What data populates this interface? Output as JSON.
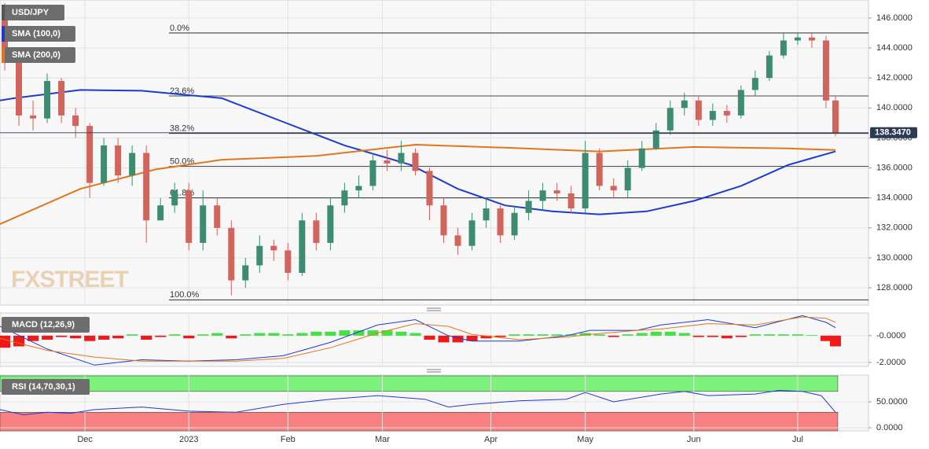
{
  "chart_data": [
    {
      "type": "candlestick",
      "title": "USD/JPY",
      "watermark": "FXSTREET",
      "x": [
        1,
        4,
        7,
        10,
        13,
        16,
        19,
        22,
        25,
        28,
        31,
        34,
        37,
        40,
        43,
        46,
        49,
        52,
        55,
        58,
        61,
        64,
        67,
        70,
        73,
        76,
        79,
        82,
        85,
        88,
        91,
        94,
        97,
        100,
        103,
        106,
        109,
        112,
        115,
        118,
        121,
        124,
        127,
        130,
        133,
        136,
        139,
        142,
        145,
        148,
        151,
        154,
        157,
        160,
        163,
        166,
        169,
        172,
        175,
        177
      ],
      "open": [
        146,
        143,
        139.5,
        139.3,
        141.8,
        139.5,
        138.8,
        135,
        137.5,
        135.5,
        137,
        132.5,
        133.5,
        134.5,
        131,
        133.5,
        132,
        128.5,
        129.5,
        130.8,
        130.5,
        129,
        132.5,
        131,
        133.5,
        134.5,
        134.8,
        136.5,
        136.3,
        137,
        135.8,
        133.5,
        131.5,
        130.8,
        132.5,
        133.3,
        131.5,
        133,
        133.8,
        134.5,
        134.3,
        133.3,
        137,
        134.8,
        134.5,
        136,
        137.3,
        138.5,
        140,
        140.5,
        139.2,
        139.8,
        139.5,
        141.2,
        142,
        143.5,
        144.5,
        144.7,
        144.5,
        140.5
      ],
      "high": [
        147,
        143.5,
        140.5,
        142.3,
        142,
        140,
        139,
        138,
        138,
        137.5,
        137.5,
        134,
        135,
        135,
        134.5,
        134,
        132.5,
        130,
        131.5,
        131.2,
        131,
        133,
        133,
        134,
        135,
        135.5,
        137,
        137.2,
        137.8,
        137.3,
        136,
        134,
        132,
        133,
        134,
        133.5,
        133.5,
        134.5,
        135,
        135,
        134.8,
        137.8,
        137.3,
        135.3,
        136.5,
        137.8,
        139,
        140.5,
        141,
        140.8,
        140.3,
        140.2,
        141.5,
        142.5,
        143.8,
        145,
        145,
        145,
        144.8,
        140.8
      ],
      "low": [
        142.5,
        138.8,
        138.5,
        139,
        139,
        138,
        134,
        134.8,
        135,
        134.8,
        131,
        132.5,
        133,
        130.5,
        130.5,
        131.5,
        127.5,
        128,
        129,
        129.8,
        128.5,
        128.8,
        130.5,
        130.5,
        133,
        134,
        134.5,
        135.8,
        135.8,
        135.5,
        132.5,
        131,
        130.2,
        130.5,
        132,
        131,
        131.2,
        132.5,
        133.2,
        133.8,
        133,
        133,
        134.5,
        134,
        134,
        135.8,
        137.2,
        138.2,
        139.5,
        138.8,
        138.8,
        139,
        139.3,
        140.8,
        141.8,
        143.3,
        144.2,
        144,
        140,
        138.1
      ],
      "close": [
        143,
        139.5,
        139.3,
        141.8,
        139.5,
        138.8,
        135,
        137.5,
        135.5,
        137,
        132.5,
        133.5,
        134.5,
        131,
        133.5,
        132,
        128.5,
        129.5,
        130.8,
        130.5,
        129,
        132.5,
        131,
        133.5,
        134.5,
        134.8,
        136.5,
        136.3,
        137,
        135.8,
        133.5,
        131.5,
        130.8,
        132.5,
        133.3,
        131.5,
        133,
        133.8,
        134.5,
        134.3,
        133.3,
        137,
        134.8,
        134.5,
        136,
        137.3,
        138.5,
        140,
        140.5,
        139.2,
        139.8,
        139.5,
        141.2,
        142,
        143.5,
        144.5,
        144.7,
        144.5,
        140.5,
        138.35
      ],
      "up_color": "#3d8c72",
      "down_color": "#d1645c",
      "title_color": "#555555",
      "series": [
        {
          "name": "SMA (100,0)",
          "color": "#1e3ad1",
          "x": [
            0,
            3,
            17,
            30,
            47,
            60,
            73,
            87,
            97,
            107,
            117,
            127,
            137,
            147,
            157,
            167,
            177
          ],
          "values": [
            140.5,
            140.65,
            141.2,
            141.15,
            140.65,
            139.07,
            137.5,
            136.2,
            134.6,
            133.5,
            133.1,
            132.9,
            133.1,
            133.8,
            134.8,
            136.2,
            137.1
          ]
        },
        {
          "name": "SMA (200,0)",
          "color": "#e0761c",
          "x": [
            0,
            17,
            33,
            47,
            67,
            88,
            107,
            127,
            147,
            167,
            177
          ],
          "values": [
            132.25,
            134.6,
            135.9,
            136.55,
            136.8,
            137.55,
            137.35,
            137.1,
            137.4,
            137.3,
            137.2
          ]
        }
      ],
      "fib_levels": [
        {
          "label": "0.0%",
          "value": 145.0
        },
        {
          "label": "23.6%",
          "value": 140.8
        },
        {
          "label": "38.2%",
          "value": 138.3
        },
        {
          "label": "50.0%",
          "value": 136.1
        },
        {
          "label": "61.8%",
          "value": 134.0
        },
        {
          "label": "100.0%",
          "value": 127.2
        }
      ],
      "last_price": {
        "value": 138.347,
        "label": "138.3470"
      },
      "xlim": [
        0,
        184
      ],
      "xticks": [
        {
          "value": 18,
          "label": "Dec"
        },
        {
          "value": 40,
          "label": "2023"
        },
        {
          "value": 61,
          "label": "Feb"
        },
        {
          "value": 81,
          "label": "Mar"
        },
        {
          "value": 104,
          "label": "Apr"
        },
        {
          "value": 124,
          "label": "May"
        },
        {
          "value": 147,
          "label": "Jun"
        },
        {
          "value": 169,
          "label": "Jul"
        }
      ],
      "ylim": [
        126.85,
        147.2
      ],
      "yticks": [
        {
          "value": 128,
          "label": "128.0000"
        },
        {
          "value": 130,
          "label": "130.0000"
        },
        {
          "value": 132,
          "label": "132.0000"
        },
        {
          "value": 134,
          "label": "134.0000"
        },
        {
          "value": 136,
          "label": "136.0000"
        },
        {
          "value": 138,
          "label": "138.0000"
        },
        {
          "value": 140,
          "label": "140.0000"
        },
        {
          "value": 142,
          "label": "142.0000"
        },
        {
          "value": 144,
          "label": "144.0000"
        },
        {
          "value": 146,
          "label": "146.0000"
        }
      ],
      "grid": true
    },
    {
      "type": "macd",
      "title": "MACD (12,26,9)",
      "x": [
        0,
        10,
        20,
        30,
        40,
        50,
        60,
        70,
        80,
        88,
        95,
        100,
        110,
        120,
        125,
        135,
        140,
        150,
        160,
        170,
        175,
        177
      ],
      "series": [
        {
          "color": "#1e3ad1",
          "values": [
            0.7,
            -1.0,
            -2.2,
            -1.8,
            -1.9,
            -1.8,
            -1.5,
            -0.5,
            0.8,
            1.2,
            0.0,
            -0.4,
            -0.4,
            0.0,
            0.4,
            0.4,
            0.8,
            1.2,
            0.6,
            1.5,
            1.0,
            0.6
          ]
        },
        {
          "color": "#e0761c",
          "values": [
            -0.2,
            -1.1,
            -1.6,
            -1.9,
            -1.9,
            -1.9,
            -1.7,
            -0.9,
            0.2,
            0.9,
            0.7,
            0.1,
            -0.3,
            -0.1,
            0.1,
            0.4,
            0.5,
            0.9,
            0.8,
            1.4,
            1.3,
            1.0
          ]
        }
      ],
      "histogram": {
        "up_color": "#44e044",
        "down_color": "#f01818",
        "x": [
          1,
          4,
          7,
          10,
          13,
          16,
          19,
          22,
          25,
          28,
          31,
          34,
          37,
          40,
          43,
          46,
          49,
          52,
          55,
          58,
          61,
          64,
          67,
          70,
          73,
          76,
          79,
          82,
          85,
          88,
          91,
          94,
          97,
          100,
          103,
          106,
          109,
          112,
          115,
          118,
          121,
          124,
          127,
          130,
          133,
          136,
          139,
          142,
          145,
          148,
          151,
          154,
          157,
          160,
          163,
          166,
          169,
          172,
          175,
          177
        ],
        "values": [
          -0.9,
          -0.8,
          -0.4,
          -0.3,
          -0.1,
          -0.2,
          -0.4,
          -0.3,
          -0.2,
          0.1,
          -0.3,
          -0.1,
          0.1,
          -0.2,
          0.1,
          0.2,
          -0.2,
          0.1,
          0.2,
          0.2,
          0.1,
          0.2,
          0.3,
          0.3,
          0.4,
          0.4,
          0.4,
          0.4,
          0.3,
          0.2,
          -0.3,
          -0.5,
          -0.5,
          -0.4,
          -0.2,
          -0.1,
          0.1,
          0.1,
          0.1,
          0.1,
          0.1,
          0.2,
          0.1,
          -0.1,
          0.1,
          0.2,
          0.3,
          0.3,
          0.2,
          -0.1,
          -0.1,
          -0.2,
          -0.1,
          0.1,
          0.1,
          0.1,
          0.1,
          0.05,
          -0.4,
          -0.8
        ]
      },
      "ylim": [
        -2.3,
        1.7
      ],
      "yticks": [
        {
          "value": -2,
          "label": "-2.0000"
        },
        {
          "value": 0,
          "label": "-0.0000"
        }
      ],
      "grid": true
    },
    {
      "type": "rsi",
      "title": "RSI (14,70,30,1)",
      "x": [
        0,
        5,
        10,
        15,
        20,
        30,
        40,
        50,
        60,
        70,
        80,
        90,
        95,
        100,
        110,
        120,
        124,
        130,
        140,
        145,
        150,
        160,
        165,
        170,
        174,
        177
      ],
      "values": [
        35,
        25,
        30,
        28,
        35,
        40,
        32,
        30,
        45,
        55,
        62,
        55,
        40,
        45,
        52,
        55,
        68,
        50,
        65,
        70,
        62,
        65,
        72,
        70,
        62,
        30
      ],
      "color": "#1e3ad1",
      "upper": 70,
      "lower": 30,
      "upper_color": "#7cf27c",
      "lower_color": "#f88080",
      "ylim": [
        -6,
        101.5
      ],
      "yticks": [
        {
          "value": 0,
          "label": "0.0000"
        },
        {
          "value": 50,
          "label": "50.0000"
        }
      ],
      "grid": true
    }
  ]
}
